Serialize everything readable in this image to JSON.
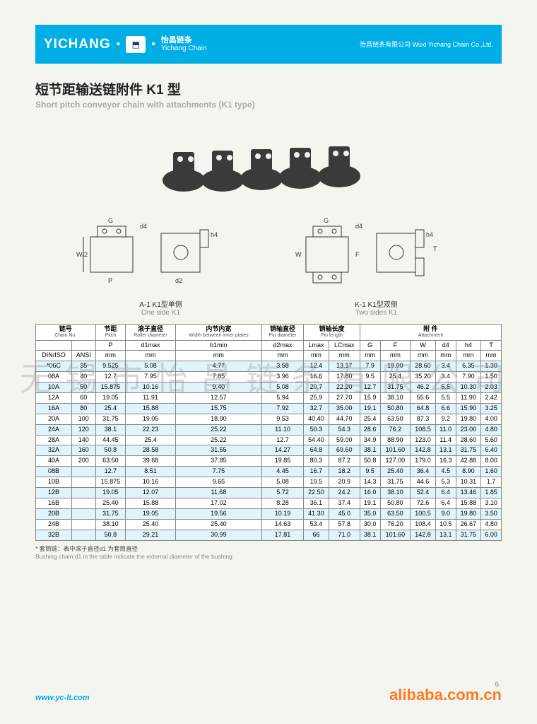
{
  "header": {
    "brand": "YICHANG",
    "brand_cn": "怡昌链条",
    "brand_en": "Yichang Chain",
    "company": "怡昌链条有限公司 Wuxi Yichang Chain Co.,Ltd."
  },
  "title": {
    "cn": "短节距输送链附件 K1 型",
    "en": "Short pitch conveyor chain with attachments (K1 type)"
  },
  "diagrams": {
    "left_label_cn": "A-1   K1型单侧",
    "left_label_en": "One side K1",
    "right_label_cn": "K-1   K1型双侧",
    "right_label_en": "Two sides K1"
  },
  "watermark": "无锡市怡昌链条有限公司",
  "table": {
    "group_headers": [
      {
        "cn": "链号",
        "en": "Chain No.",
        "span": 2
      },
      {
        "cn": "节距",
        "en": "Pitch",
        "span": 1
      },
      {
        "cn": "滚子直径",
        "en": "Roller diameter",
        "span": 1
      },
      {
        "cn": "内节内宽",
        "en": "Width between inner plates",
        "span": 1
      },
      {
        "cn": "销轴直径",
        "en": "Pin diameter",
        "span": 1
      },
      {
        "cn": "销轴长度",
        "en": "Pin length",
        "span": 2
      },
      {
        "cn": "附 件",
        "en": "Attachment",
        "span": 6
      }
    ],
    "sub_headers_row1": [
      "",
      "",
      "P",
      "d1max",
      "b1min",
      "d2max",
      "Lmax",
      "LCmax",
      "G",
      "F",
      "W",
      "d4",
      "h4",
      "T"
    ],
    "sub_headers_row2": [
      "DIN/ISO",
      "ANSI",
      "mm",
      "mm",
      "mm",
      "mm",
      "mm",
      "mm",
      "mm",
      "mm",
      "mm",
      "mm",
      "mm",
      "mm"
    ],
    "rows": [
      [
        "*06C",
        "35",
        "9.525",
        "5.08",
        "4.77",
        "3.58",
        "12.4",
        "13.17",
        "7.9",
        "19.00",
        "28.60",
        "3.4",
        "6.35",
        "1.30"
      ],
      [
        "08A",
        "40",
        "12.7",
        "7.95",
        "7.85",
        "3.96",
        "16.6",
        "17.80",
        "9.5",
        "25.4",
        "35.20",
        "3.4",
        "7.90",
        "1.50"
      ],
      [
        "10A",
        "50",
        "15.875",
        "10.16",
        "9.40",
        "5.08",
        "20.7",
        "22.20",
        "12.7",
        "31.75",
        "46.2",
        "5.5",
        "10.30",
        "2.03"
      ],
      [
        "12A",
        "60",
        "19.05",
        "11.91",
        "12.57",
        "5.94",
        "25.9",
        "27.70",
        "15.9",
        "38.10",
        "55.6",
        "5.5",
        "11.90",
        "2.42"
      ],
      [
        "16A",
        "80",
        "25.4",
        "15.88",
        "15.75",
        "7.92",
        "32.7",
        "35.00",
        "19.1",
        "50.80",
        "64.8",
        "6.6",
        "15.90",
        "3.25"
      ],
      [
        "20A",
        "100",
        "31.75",
        "19.05",
        "18.90",
        "9.53",
        "40.40",
        "44.70",
        "25.4",
        "63.50",
        "87.3",
        "9.2",
        "19.80",
        "4.00"
      ],
      [
        "24A",
        "120",
        "38.1",
        "22.23",
        "25.22",
        "11.10",
        "50.3",
        "54.3",
        "28.6",
        "76.2",
        "108.5",
        "11.0",
        "23.00",
        "4.80"
      ],
      [
        "28A",
        "140",
        "44.45",
        "25.4",
        "25.22",
        "12.7",
        "54.40",
        "59.00",
        "34.9",
        "88.90",
        "123.0",
        "11.4",
        "28.60",
        "5.60"
      ],
      [
        "32A",
        "160",
        "50.8",
        "28.58",
        "31.55",
        "14.27",
        "64.8",
        "69.60",
        "38.1",
        "101.60",
        "142.8",
        "13.1",
        "31.75",
        "6.40"
      ],
      [
        "40A",
        "200",
        "63.50",
        "39.68",
        "37.85",
        "19.85",
        "80.3",
        "87.2",
        "50.8",
        "127.00",
        "179.0",
        "16.3",
        "42.88",
        "8.00"
      ],
      [
        "08B",
        "",
        "12.7",
        "8.51",
        "7.75",
        "4.45",
        "16.7",
        "18.2",
        "9.5",
        "25.40",
        "36.4",
        "4.5",
        "8.90",
        "1.60"
      ],
      [
        "10B",
        "",
        "15.875",
        "10.16",
        "9.65",
        "5.08",
        "19.5",
        "20.9",
        "14.3",
        "31.75",
        "44.6",
        "5.3",
        "10.31",
        "1.7"
      ],
      [
        "12B",
        "",
        "19.05",
        "12.07",
        "11.68",
        "5.72",
        "22.50",
        "24.2",
        "16.0",
        "38.10",
        "52.4",
        "6.4",
        "13.46",
        "1.85"
      ],
      [
        "16B",
        "",
        "25.40",
        "15.88",
        "17.02",
        "8.28",
        "36.1",
        "37.4",
        "19.1",
        "50.80",
        "72.6",
        "6.4",
        "15.88",
        "3.10"
      ],
      [
        "20B",
        "",
        "31.75",
        "19.05",
        "19.56",
        "10.19",
        "41.30",
        "45.0",
        "35.0",
        "63.50",
        "100.5",
        "9.0",
        "19.80",
        "3.50"
      ],
      [
        "24B",
        "",
        "38.10",
        "25.40",
        "25.40",
        "14.63",
        "53.4",
        "57.8",
        "30.0",
        "76.20",
        "108.4",
        "10.5",
        "26.67",
        "4.80"
      ],
      [
        "32B",
        "",
        "50.8",
        "29.21",
        "30.99",
        "17.81",
        "66",
        "71.0",
        "38.1",
        "101.60",
        "142.8",
        "13.1",
        "31.75",
        "6.00"
      ]
    ]
  },
  "footnote": {
    "cn": "* 套筒链：表中滚子直径d1 为套筒直径",
    "en": "Bushing chain:d1 in the table indicate the external diameter of the bushing"
  },
  "footer": {
    "url": "www.yc-lt.com",
    "alibaba": "alibaba.com.cn",
    "page": "6"
  },
  "colors": {
    "header_bg": "#00aee6",
    "row_alt": "#e0f4fc",
    "accent": "#ff6600"
  }
}
